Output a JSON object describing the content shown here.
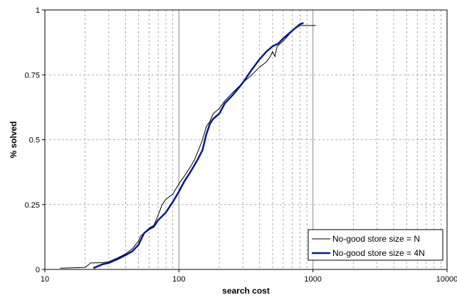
{
  "chart_data": {
    "type": "line",
    "title": "",
    "xlabel": "search cost",
    "ylabel": "% solved",
    "x_scale": "log",
    "xlim": [
      10,
      10000
    ],
    "ylim": [
      0,
      1
    ],
    "x_ticks": [
      {
        "value": 10,
        "label": "10"
      },
      {
        "value": 100,
        "label": "100"
      },
      {
        "value": 1000,
        "label": "1000"
      },
      {
        "value": 10000,
        "label": "10000"
      }
    ],
    "y_ticks": [
      {
        "value": 0,
        "label": "0"
      },
      {
        "value": 0.25,
        "label": "0.25"
      },
      {
        "value": 0.5,
        "label": "0.5"
      },
      {
        "value": 0.75,
        "label": "0.75"
      },
      {
        "value": 1,
        "label": "1"
      }
    ],
    "grid": true,
    "legend_position": "bottom-right",
    "series": [
      {
        "name": "No-good store size = N",
        "color": "#000000",
        "points": [
          [
            13,
            0.005
          ],
          [
            20,
            0.008
          ],
          [
            22,
            0.025
          ],
          [
            27,
            0.026
          ],
          [
            30,
            0.03
          ],
          [
            35,
            0.045
          ],
          [
            40,
            0.06
          ],
          [
            45,
            0.08
          ],
          [
            50,
            0.11
          ],
          [
            52,
            0.13
          ],
          [
            55,
            0.14
          ],
          [
            60,
            0.16
          ],
          [
            65,
            0.17
          ],
          [
            70,
            0.21
          ],
          [
            75,
            0.25
          ],
          [
            80,
            0.27
          ],
          [
            90,
            0.29
          ],
          [
            100,
            0.33
          ],
          [
            110,
            0.36
          ],
          [
            120,
            0.39
          ],
          [
            130,
            0.42
          ],
          [
            140,
            0.46
          ],
          [
            150,
            0.5
          ],
          [
            160,
            0.55
          ],
          [
            170,
            0.57
          ],
          [
            180,
            0.6
          ],
          [
            200,
            0.62
          ],
          [
            220,
            0.65
          ],
          [
            250,
            0.68
          ],
          [
            300,
            0.72
          ],
          [
            350,
            0.75
          ],
          [
            400,
            0.78
          ],
          [
            450,
            0.8
          ],
          [
            480,
            0.82
          ],
          [
            500,
            0.84
          ],
          [
            520,
            0.82
          ],
          [
            540,
            0.86
          ],
          [
            600,
            0.88
          ],
          [
            650,
            0.9
          ],
          [
            700,
            0.92
          ],
          [
            800,
            0.94
          ],
          [
            900,
            0.94
          ],
          [
            1050,
            0.94
          ]
        ]
      },
      {
        "name": "No-good store size = 4N",
        "color": "#0a1a8a",
        "points": [
          [
            23,
            0.005
          ],
          [
            27,
            0.02
          ],
          [
            30,
            0.025
          ],
          [
            35,
            0.04
          ],
          [
            40,
            0.055
          ],
          [
            45,
            0.07
          ],
          [
            50,
            0.095
          ],
          [
            55,
            0.14
          ],
          [
            60,
            0.155
          ],
          [
            65,
            0.165
          ],
          [
            70,
            0.19
          ],
          [
            80,
            0.22
          ],
          [
            90,
            0.26
          ],
          [
            100,
            0.3
          ],
          [
            110,
            0.34
          ],
          [
            120,
            0.37
          ],
          [
            130,
            0.4
          ],
          [
            140,
            0.43
          ],
          [
            150,
            0.46
          ],
          [
            160,
            0.52
          ],
          [
            170,
            0.56
          ],
          [
            180,
            0.58
          ],
          [
            200,
            0.6
          ],
          [
            220,
            0.64
          ],
          [
            250,
            0.67
          ],
          [
            280,
            0.7
          ],
          [
            300,
            0.72
          ],
          [
            350,
            0.77
          ],
          [
            400,
            0.81
          ],
          [
            450,
            0.84
          ],
          [
            500,
            0.86
          ],
          [
            550,
            0.87
          ],
          [
            600,
            0.89
          ],
          [
            700,
            0.92
          ],
          [
            800,
            0.945
          ],
          [
            850,
            0.95
          ]
        ]
      }
    ]
  }
}
